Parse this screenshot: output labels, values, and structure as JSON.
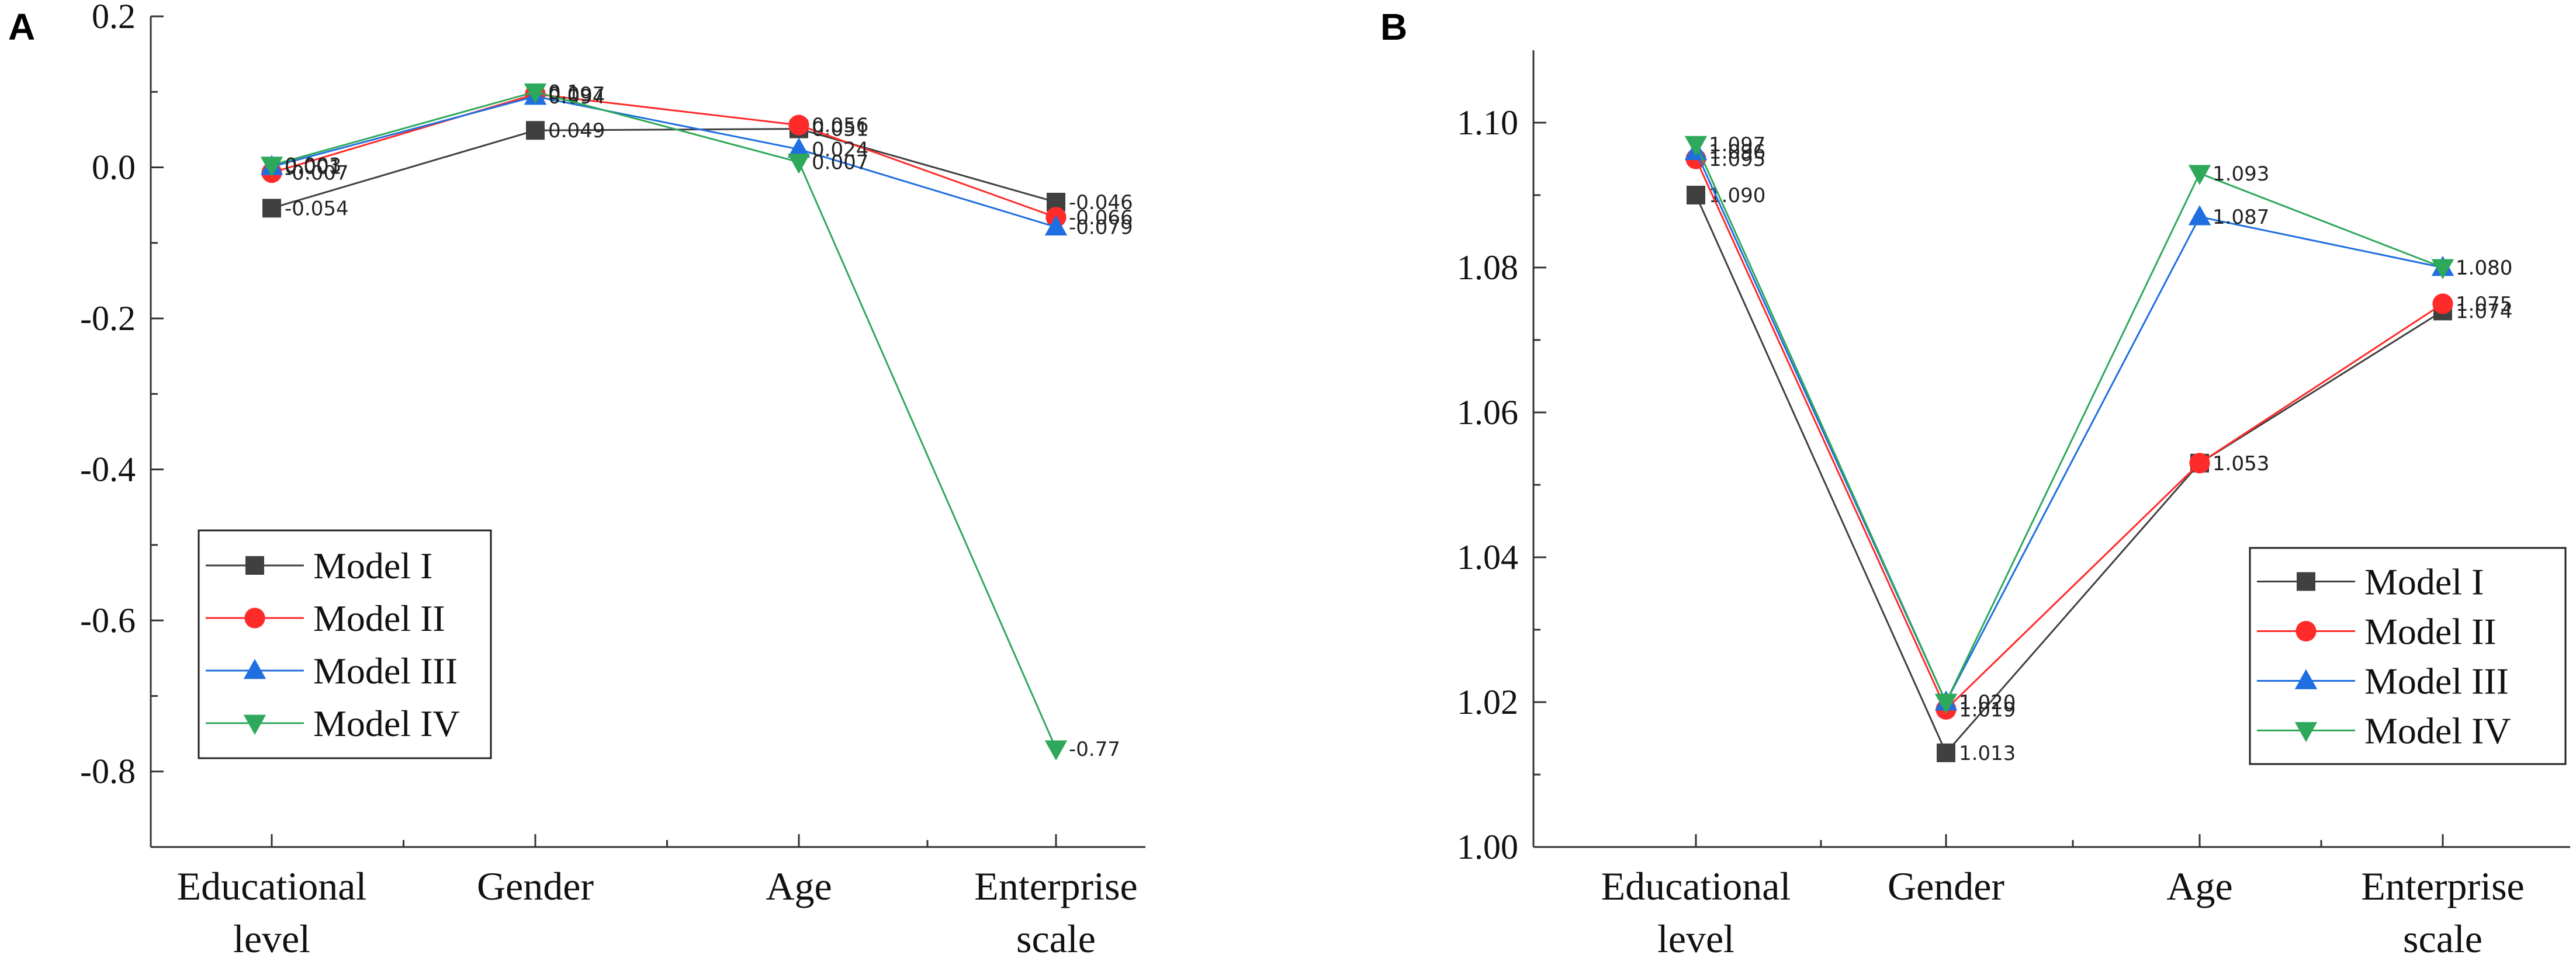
{
  "chart_data": [
    {
      "panel": "A",
      "type": "line",
      "categories": [
        "Educational|level",
        "Gender",
        "Age",
        "Enterprise|scale"
      ],
      "ylim": [
        -0.9,
        0.2
      ],
      "yticks": [
        0.2,
        0.0,
        -0.2,
        -0.4,
        -0.6,
        -0.8
      ],
      "ytick_labels": [
        "0.2",
        "0.0",
        "-0.2",
        "-0.4",
        "-0.6",
        "-0.8"
      ],
      "legend_position": "lower-left",
      "series": [
        {
          "name": "Model I",
          "color": "#404040",
          "marker": "square",
          "values": [
            -0.054,
            0.049,
            0.051,
            -0.046
          ],
          "labels": [
            "-0.054",
            "0.049",
            "0.051",
            "-0.046"
          ]
        },
        {
          "name": "Model II",
          "color": "#ff2a2a",
          "marker": "circle",
          "values": [
            -0.007,
            0.097,
            0.056,
            -0.066
          ],
          "labels": [
            "-0.007",
            "0.097",
            "0.056",
            "-0.066"
          ]
        },
        {
          "name": "Model III",
          "color": "#1f6fe0",
          "marker": "triangle-up",
          "values": [
            0.001,
            0.094,
            0.024,
            -0.079
          ],
          "labels": [
            "0.001",
            "0.094",
            "0.024",
            "-0.079"
          ]
        },
        {
          "name": "Model IV",
          "color": "#2ea85a",
          "marker": "triangle-down",
          "values": [
            0.003,
            0.1,
            0.007,
            -0.77
          ],
          "labels": [
            "0.003",
            "0.1",
            "0.007",
            "-0.77"
          ]
        }
      ]
    },
    {
      "panel": "B",
      "type": "line",
      "categories": [
        "Educational|level",
        "Gender",
        "Age",
        "Enterprise|scale"
      ],
      "ylim": [
        1.0,
        1.11
      ],
      "yticks": [
        1.1,
        1.08,
        1.06,
        1.04,
        1.02,
        1.0
      ],
      "ytick_labels": [
        "1.10",
        "1.08",
        "1.06",
        "1.04",
        "1.02",
        "1.00"
      ],
      "legend_position": "lower-right",
      "series": [
        {
          "name": "Model I",
          "color": "#404040",
          "marker": "square",
          "values": [
            1.09,
            1.013,
            1.053,
            1.074
          ],
          "labels": [
            "1.090",
            "1.013",
            "1.053",
            "1.074"
          ]
        },
        {
          "name": "Model II",
          "color": "#ff2a2a",
          "marker": "circle",
          "values": [
            1.095,
            1.019,
            1.053,
            1.075
          ],
          "labels": [
            "1.095",
            "1.019",
            "1.053",
            "1.075"
          ]
        },
        {
          "name": "Model III",
          "color": "#1f6fe0",
          "marker": "triangle-up",
          "values": [
            1.096,
            1.02,
            1.087,
            1.08
          ],
          "labels": [
            "1.096",
            "1.020",
            "1.087",
            "1.080"
          ]
        },
        {
          "name": "Model IV",
          "color": "#2ea85a",
          "marker": "triangle-down",
          "values": [
            1.097,
            1.02,
            1.093,
            1.08
          ],
          "labels": [
            "1.097",
            "1.020",
            "1.093",
            "1.080"
          ]
        }
      ]
    }
  ]
}
